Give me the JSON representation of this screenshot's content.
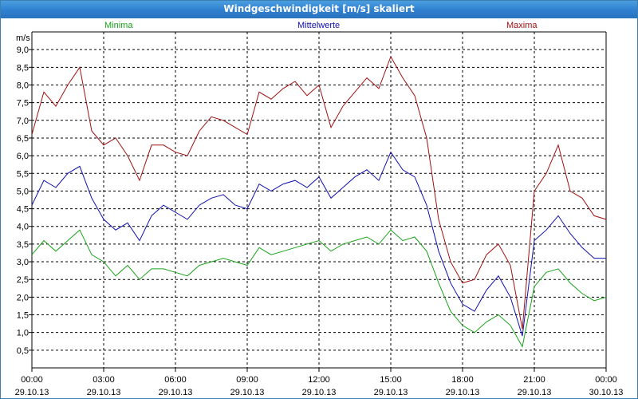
{
  "window": {
    "title": "Windgeschwindigkeit [m/s] skaliert"
  },
  "colors": {
    "min": "#1aa31a",
    "mean": "#1010b0",
    "max": "#a01010",
    "grid": "#000000",
    "title_bg": "#2f7fcf"
  },
  "chart_data": {
    "type": "line",
    "title": "Windgeschwindigkeit [m/s] skaliert",
    "ylabel": "m/s",
    "ylim": [
      0,
      9.5
    ],
    "xlim": [
      "29.10.13 00:00",
      "30.10.13 00:00"
    ],
    "y_ticks": [
      "0,5",
      "1,0",
      "1,5",
      "2,0",
      "2,5",
      "3,0",
      "3,5",
      "4,0",
      "4,5",
      "5,0",
      "5,5",
      "6,0",
      "6,5",
      "7,0",
      "7,5",
      "8,0",
      "8,5",
      "9,0"
    ],
    "x_ticks": [
      {
        "time": "00:00",
        "date": "29.10.13"
      },
      {
        "time": "03:00",
        "date": "29.10.13"
      },
      {
        "time": "06:00",
        "date": "29.10.13"
      },
      {
        "time": "09:00",
        "date": "29.10.13"
      },
      {
        "time": "12:00",
        "date": "29.10.13"
      },
      {
        "time": "15:00",
        "date": "29.10.13"
      },
      {
        "time": "18:00",
        "date": "29.10.13"
      },
      {
        "time": "21:00",
        "date": "29.10.13"
      },
      {
        "time": "00:00",
        "date": "30.10.13"
      }
    ],
    "grid": true,
    "x_hours": [
      0,
      0.5,
      1,
      1.5,
      2,
      2.5,
      3,
      3.5,
      4,
      4.5,
      5,
      5.5,
      6,
      6.5,
      7,
      7.5,
      8,
      8.5,
      9,
      9.5,
      10,
      10.5,
      11,
      11.5,
      12,
      12.5,
      13,
      13.5,
      14,
      14.5,
      15,
      15.5,
      16,
      16.5,
      17,
      17.5,
      18,
      18.5,
      19,
      19.5,
      20,
      20.5,
      21,
      21.5,
      22,
      22.5,
      23,
      23.5,
      24
    ],
    "series": [
      {
        "name": "Minima",
        "values": [
          3.2,
          3.6,
          3.3,
          3.6,
          3.9,
          3.2,
          3.0,
          2.6,
          2.9,
          2.5,
          2.8,
          2.8,
          2.7,
          2.6,
          2.9,
          3.0,
          3.1,
          3.0,
          2.9,
          3.4,
          3.2,
          3.3,
          3.4,
          3.5,
          3.6,
          3.3,
          3.5,
          3.6,
          3.7,
          3.5,
          3.9,
          3.6,
          3.7,
          3.3,
          2.4,
          1.6,
          1.2,
          1.0,
          1.3,
          1.5,
          1.2,
          0.6,
          2.3,
          2.7,
          2.8,
          2.4,
          2.1,
          1.9,
          2.0
        ]
      },
      {
        "name": "Mittelwerte",
        "values": [
          4.6,
          5.3,
          5.1,
          5.5,
          5.7,
          4.8,
          4.2,
          3.9,
          4.1,
          3.6,
          4.3,
          4.6,
          4.4,
          4.2,
          4.6,
          4.8,
          4.9,
          4.6,
          4.5,
          5.2,
          5.0,
          5.2,
          5.3,
          5.1,
          5.4,
          4.8,
          5.1,
          5.4,
          5.6,
          5.3,
          6.1,
          5.6,
          5.4,
          4.6,
          3.3,
          2.4,
          1.8,
          1.6,
          2.2,
          2.6,
          2.0,
          0.9,
          3.6,
          3.9,
          4.3,
          3.8,
          3.4,
          3.1,
          3.1
        ]
      },
      {
        "name": "Maxima",
        "values": [
          6.6,
          7.8,
          7.4,
          8.0,
          8.5,
          6.7,
          6.3,
          6.5,
          6.0,
          5.3,
          6.3,
          6.3,
          6.1,
          6.0,
          6.7,
          7.1,
          7.0,
          6.8,
          6.6,
          7.8,
          7.6,
          7.9,
          8.1,
          7.7,
          8.0,
          6.8,
          7.4,
          7.8,
          8.2,
          7.9,
          8.8,
          8.2,
          7.7,
          6.5,
          4.2,
          3.0,
          2.4,
          2.5,
          3.2,
          3.5,
          2.9,
          1.1,
          5.0,
          5.5,
          6.3,
          5.0,
          4.8,
          4.3,
          4.2
        ]
      }
    ]
  }
}
